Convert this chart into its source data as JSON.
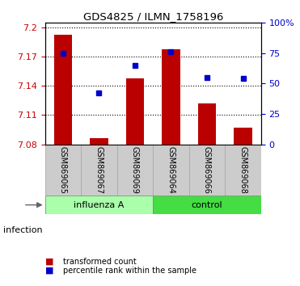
{
  "title": "GDS4825 / ILMN_1758196",
  "categories": [
    "GSM869065",
    "GSM869067",
    "GSM869069",
    "GSM869064",
    "GSM869066",
    "GSM869068"
  ],
  "bar_values": [
    7.193,
    7.086,
    7.148,
    7.178,
    7.122,
    7.097
  ],
  "bar_base": 7.08,
  "percentile_values": [
    75,
    42,
    65,
    76,
    55,
    54
  ],
  "percentile_scale_min": 0,
  "percentile_scale_max": 100,
  "ylim": [
    7.08,
    7.205
  ],
  "yticks": [
    7.08,
    7.11,
    7.14,
    7.17,
    7.2
  ],
  "yticklabels": [
    "7.08",
    "7.11",
    "7.14",
    "7.17",
    "7.2"
  ],
  "right_yticks": [
    0,
    25,
    50,
    75,
    100
  ],
  "right_yticklabels": [
    "0",
    "25",
    "50",
    "75",
    "100%"
  ],
  "bar_color": "#bb0000",
  "dot_color": "#0000cc",
  "group1_label": "influenza A",
  "group1_color": "#aaffaa",
  "group2_label": "control",
  "group2_color": "#44dd44",
  "factor_label": "infection",
  "legend_bar_label": "transformed count",
  "legend_dot_label": "percentile rank within the sample",
  "left_tick_color": "#cc0000",
  "right_tick_color": "#0000cc",
  "bar_width": 0.5,
  "xtick_box_color": "#cccccc",
  "figsize": [
    3.71,
    3.54
  ],
  "dpi": 100
}
